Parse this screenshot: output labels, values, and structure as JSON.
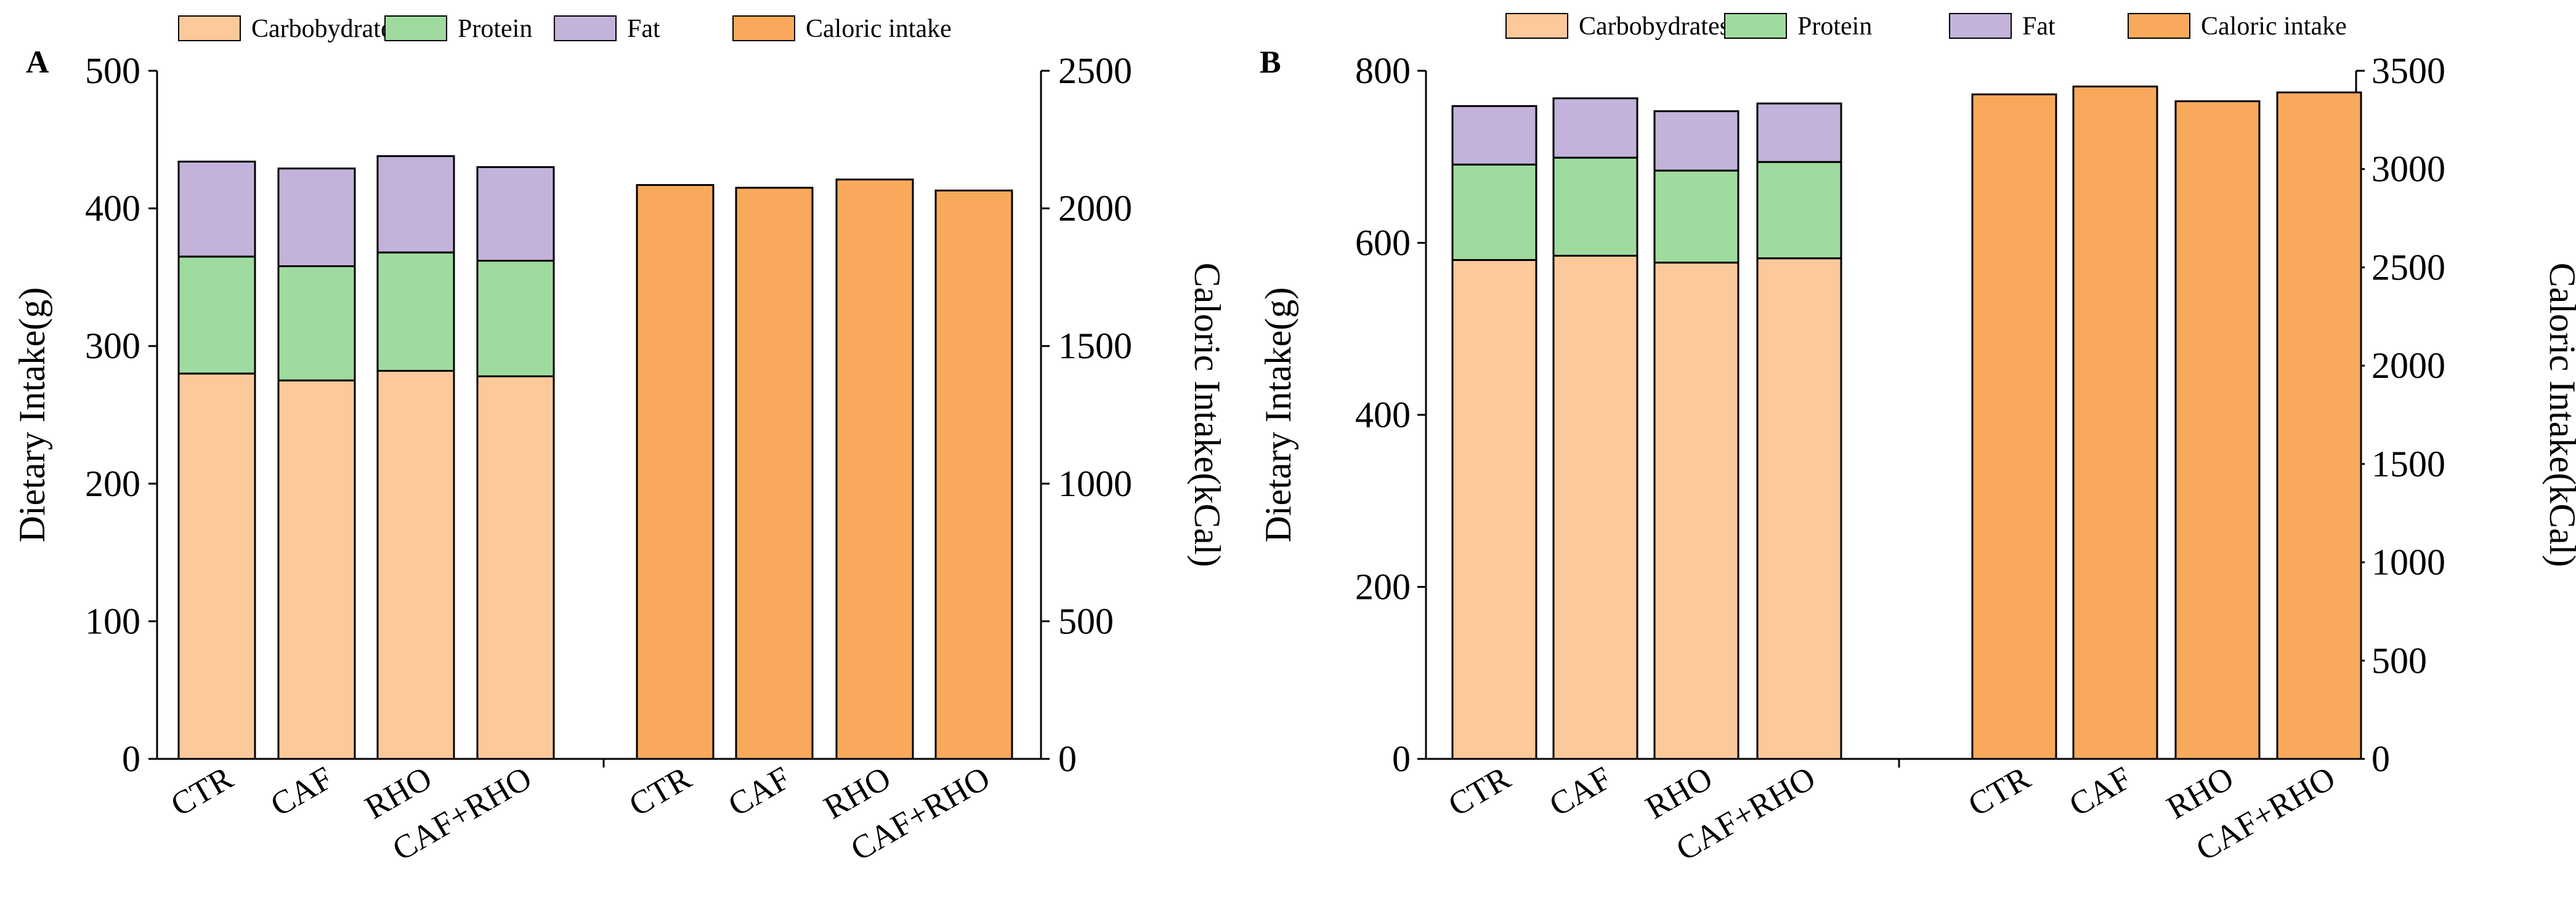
{
  "chart_data": [
    {
      "panel": "A",
      "type": "bar",
      "legend": [
        "Carbobydrates",
        "Protein",
        "Fat",
        "Caloric intake"
      ],
      "colors": {
        "Carbobydrates": "#fbc99a",
        "Protein": "#9fdb9f",
        "Fat": "#c3b3da",
        "Caloric intake": "#f9a95b"
      },
      "left_axis": {
        "label": "Dietary Intake(g)",
        "ylim": [
          0,
          500
        ],
        "ticks": [
          0,
          100,
          200,
          300,
          400,
          500
        ]
      },
      "right_axis": {
        "label": "Caloric Intake(kCal)",
        "ylim": [
          0,
          2500
        ],
        "ticks": [
          0,
          500,
          1000,
          1500,
          2000,
          2500
        ]
      },
      "stacked": {
        "categories": [
          "CTR",
          "CAF",
          "RHO",
          "CAF+RHO"
        ],
        "series": [
          {
            "name": "Carbobydrates",
            "values": [
              280,
              275,
              282,
              278
            ]
          },
          {
            "name": "Protein",
            "values": [
              85,
              83,
              86,
              84
            ]
          },
          {
            "name": "Fat",
            "values": [
              69,
              71,
              70,
              68
            ]
          }
        ]
      },
      "caloric": {
        "categories": [
          "CTR",
          "CAF",
          "RHO",
          "CAF+RHO"
        ],
        "series": [
          {
            "name": "Caloric intake",
            "values": [
              2085,
              2075,
              2105,
              2065
            ]
          }
        ]
      }
    },
    {
      "panel": "B",
      "type": "bar",
      "legend": [
        "Carbobydrates",
        "Protein",
        "Fat",
        "Caloric intake"
      ],
      "colors": {
        "Carbobydrates": "#fbc99a",
        "Protein": "#9fdb9f",
        "Fat": "#c3b3da",
        "Caloric intake": "#f9a95b"
      },
      "left_axis": {
        "label": "Dietary Intake(g)",
        "ylim": [
          0,
          800
        ],
        "ticks": [
          0,
          200,
          400,
          600,
          800
        ]
      },
      "right_axis": {
        "label": "Caloric Intake(kCal)",
        "ylim": [
          0,
          3500
        ],
        "ticks": [
          0,
          500,
          1000,
          1500,
          2000,
          2500,
          3000,
          3500
        ]
      },
      "stacked": {
        "categories": [
          "CTR",
          "CAF",
          "RHO",
          "CAF+RHO"
        ],
        "series": [
          {
            "name": "Carbobydrates",
            "values": [
              580,
              585,
              577,
              582
            ]
          },
          {
            "name": "Protein",
            "values": [
              111,
              114,
              107,
              112
            ]
          },
          {
            "name": "Fat",
            "values": [
              68,
              69,
              69,
              68
            ]
          }
        ]
      },
      "caloric": {
        "categories": [
          "CTR",
          "CAF",
          "RHO",
          "CAF+RHO"
        ],
        "series": [
          {
            "name": "Caloric intake",
            "values": [
              3380,
              3420,
              3345,
              3390
            ]
          }
        ]
      }
    }
  ]
}
